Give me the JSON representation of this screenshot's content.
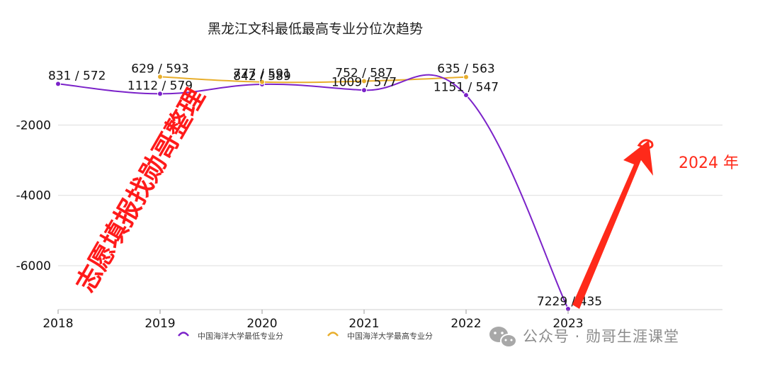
{
  "chart_data": {
    "type": "line",
    "title": "黑龙江文科最低最高专业分位次趋势",
    "categories": [
      "2018",
      "2019",
      "2020",
      "2021",
      "2022",
      "2023"
    ],
    "y_axis": {
      "ylim": [
        -7250,
        -500
      ],
      "ticks": [
        -2000,
        -4000,
        -6000
      ],
      "tick_labels": [
        "-2000",
        "-4000",
        "-6000"
      ]
    },
    "grid": true,
    "legend_position": "bottom",
    "series": [
      {
        "name": "中国海洋大学最低专业分",
        "color": "#7b22c9",
        "values": [
          -831,
          -1112,
          -842,
          -1009,
          -1151,
          -7229
        ],
        "labels": [
          "831 / 572",
          "1112 / 579",
          "842 / 589",
          "1009 / 577",
          "1151 / 547",
          "7229 / 435"
        ]
      },
      {
        "name": "中国海洋大学最高专业分",
        "color": "#e8ae2c",
        "values": [
          null,
          -629,
          -777,
          -752,
          -635,
          null
        ],
        "labels": [
          null,
          "629 / 593",
          "777 / 591",
          "752 / 587",
          "635 / 563",
          null
        ]
      }
    ]
  },
  "watermark": "志愿填报找勋哥整理",
  "annotation": {
    "text": "2024 年",
    "color": "#ff2a1a"
  },
  "footer": {
    "icon": "wechat-icon",
    "text": "公众号 · 勋哥生涯课堂"
  }
}
